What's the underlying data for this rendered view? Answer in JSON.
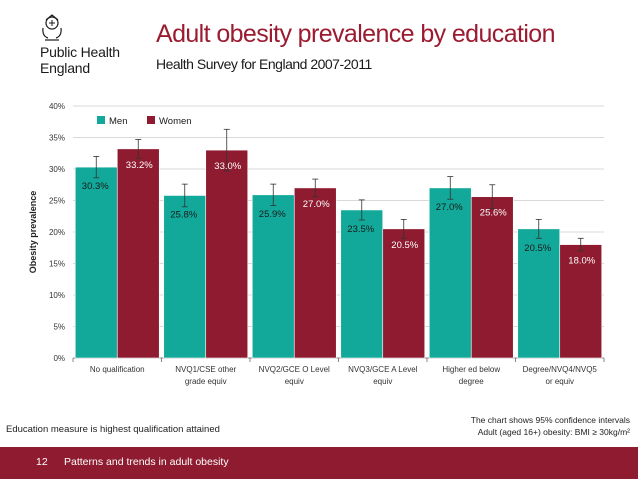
{
  "header": {
    "org_line1": "Public Health",
    "org_line2": "England",
    "title": "Adult obesity prevalence by education",
    "subtitle": "Health Survey for England 2007-2011"
  },
  "colors": {
    "men": "#12a89a",
    "women": "#8e1b2f",
    "title": "#9b1b30",
    "footer_bar": "#8e1b2f"
  },
  "chart_data": {
    "type": "bar",
    "ylabel": "Obesity prevalence",
    "ylim": [
      0,
      40
    ],
    "yticks": [
      "0%",
      "5%",
      "10%",
      "15%",
      "20%",
      "25%",
      "30%",
      "35%",
      "40%"
    ],
    "legend_position": "top-left",
    "categories": [
      [
        "No qualification"
      ],
      [
        "NVQ1/CSE other",
        "grade equiv"
      ],
      [
        "NVQ2/GCE O Level",
        "equiv"
      ],
      [
        "NVQ3/GCE A Level",
        "equiv"
      ],
      [
        "Higher ed below",
        "degree"
      ],
      [
        "Degree/NVQ4/NVQ5",
        "or equiv"
      ]
    ],
    "series": [
      {
        "name": "Men",
        "values": [
          30.3,
          25.8,
          25.9,
          23.5,
          27.0,
          20.5
        ],
        "labels": [
          "30.3%",
          "25.8%",
          "25.9%",
          "23.5%",
          "27.0%",
          "20.5%"
        ],
        "ci": [
          [
            28.6,
            32.0
          ],
          [
            24.0,
            27.6
          ],
          [
            24.2,
            27.6
          ],
          [
            21.9,
            25.1
          ],
          [
            25.2,
            28.8
          ],
          [
            19.0,
            22.0
          ]
        ]
      },
      {
        "name": "Women",
        "values": [
          33.2,
          33.0,
          27.0,
          20.5,
          25.6,
          18.0
        ],
        "labels": [
          "33.2%",
          "33.0%",
          "27.0%",
          "20.5%",
          "25.6%",
          "18.0%"
        ],
        "ci": [
          [
            31.7,
            34.7
          ],
          [
            29.7,
            36.3
          ],
          [
            25.6,
            28.4
          ],
          [
            19.0,
            22.0
          ],
          [
            23.7,
            27.5
          ],
          [
            17.0,
            19.0
          ]
        ]
      }
    ]
  },
  "footer": {
    "note_left": "Education measure is highest qualification attained",
    "note_right_line1": "The chart shows 95% confidence intervals",
    "note_right_line2": "Adult (aged 16+) obesity: BMI ≥ 30kg/m²",
    "page_number": "12",
    "page_title": "Patterns and trends in adult obesity"
  }
}
